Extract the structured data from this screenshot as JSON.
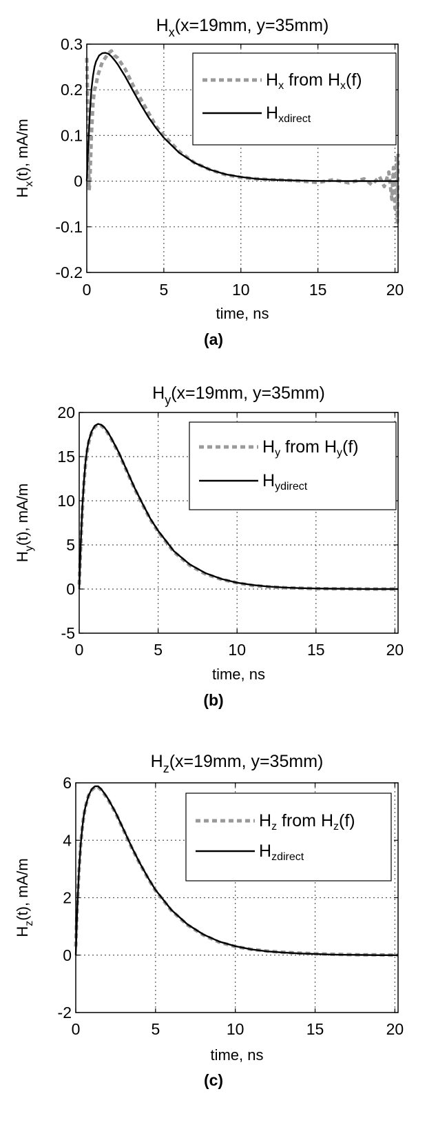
{
  "figure": {
    "subpanel_labels": [
      "(a)",
      "(b)",
      "(c)"
    ]
  },
  "chart_data": [
    {
      "type": "line",
      "panel_label": "(a)",
      "title": {
        "base": "H",
        "sub": "x",
        "rest": "(x=19mm, y=35mm)"
      },
      "xlabel": "time, ns",
      "ylabel": {
        "base": "H",
        "sub": "x",
        "rest": "(t), mA/m"
      },
      "xlim": [
        0,
        20.2
      ],
      "ylim": [
        -0.2,
        0.3
      ],
      "xticks": [
        0,
        5,
        10,
        15,
        20
      ],
      "yticks": [
        -0.2,
        -0.1,
        0,
        0.1,
        0.2,
        0.3
      ],
      "xticklabels": [
        "0",
        "5",
        "10",
        "15",
        "20"
      ],
      "yticklabels": [
        "-0.2",
        "-0.1",
        "0",
        "0.1",
        "0.2",
        "0.3"
      ],
      "grid": true,
      "legend_position": "top-right",
      "series": [
        {
          "style": "dashed",
          "color": "#9a9a9a",
          "legend": {
            "base": "H",
            "sub": "x",
            "rest": " from H",
            "sub2": "x",
            "rest2": "(f)"
          },
          "x": [
            0,
            0.05,
            0.1,
            0.15,
            0.2,
            0.3,
            0.4,
            0.5,
            0.6,
            0.7,
            0.8,
            0.9,
            1.0,
            1.2,
            1.4,
            1.6,
            1.8,
            2,
            2.5,
            3,
            3.5,
            4,
            4.5,
            5,
            6,
            7,
            8,
            9,
            10,
            11,
            12,
            13,
            14,
            15,
            16,
            17,
            18,
            18.5,
            19,
            19.3,
            19.6,
            19.8,
            19.9,
            20,
            20.1,
            20.15,
            20.2
          ],
          "y": [
            0.27,
            0.2,
            0.05,
            -0.02,
            0.0,
            0.1,
            0.17,
            0.2,
            0.21,
            0.23,
            0.24,
            0.25,
            0.26,
            0.27,
            0.28,
            0.285,
            0.275,
            0.27,
            0.245,
            0.21,
            0.18,
            0.15,
            0.12,
            0.1,
            0.065,
            0.04,
            0.025,
            0.014,
            0.008,
            0.005,
            0.003,
            0.002,
            0.0,
            -0.003,
            0.003,
            -0.004,
            0.005,
            -0.008,
            0.01,
            -0.012,
            0.02,
            -0.04,
            0.03,
            -0.06,
            0.05,
            -0.09,
            0.06
          ]
        },
        {
          "style": "solid",
          "color": "#000000",
          "legend": {
            "base": "H",
            "sub": "xdirect",
            "rest": "",
            "sub2": "",
            "rest2": ""
          },
          "x": [
            0,
            0.1,
            0.2,
            0.3,
            0.4,
            0.5,
            0.6,
            0.8,
            1.0,
            1.2,
            1.4,
            1.6,
            1.8,
            2,
            2.5,
            3,
            3.5,
            4,
            4.5,
            5,
            6,
            7,
            8,
            9,
            10,
            11,
            12,
            13,
            14,
            15,
            16,
            17,
            18,
            19,
            20,
            20.2
          ],
          "y": [
            0,
            0.08,
            0.15,
            0.2,
            0.23,
            0.25,
            0.262,
            0.275,
            0.28,
            0.281,
            0.279,
            0.273,
            0.265,
            0.256,
            0.229,
            0.198,
            0.168,
            0.14,
            0.116,
            0.095,
            0.062,
            0.04,
            0.025,
            0.015,
            0.009,
            0.005,
            0.003,
            0.002,
            0.001,
            0.0005,
            0.0003,
            0.0002,
            0.0001,
            0.0,
            0.0,
            0.0
          ]
        }
      ]
    },
    {
      "type": "line",
      "panel_label": "(b)",
      "title": {
        "base": "H",
        "sub": "y",
        "rest": "(x=19mm, y=35mm)"
      },
      "xlabel": "time, ns",
      "ylabel": {
        "base": "H",
        "sub": "y",
        "rest": "(t), mA/m"
      },
      "xlim": [
        0,
        20.2
      ],
      "ylim": [
        -5,
        20
      ],
      "xticks": [
        0,
        5,
        10,
        15,
        20
      ],
      "yticks": [
        -5,
        0,
        5,
        10,
        15,
        20
      ],
      "xticklabels": [
        "0",
        "5",
        "10",
        "15",
        "20"
      ],
      "yticklabels": [
        "-5",
        "0",
        "5",
        "10",
        "15",
        "20"
      ],
      "grid": true,
      "legend_position": "top-right",
      "series": [
        {
          "style": "dashed",
          "color": "#9a9a9a",
          "legend": {
            "base": "H",
            "sub": "y",
            "rest": " from H",
            "sub2": "y",
            "rest2": "(f)"
          },
          "x": [
            0,
            0.1,
            0.2,
            0.3,
            0.4,
            0.5,
            0.6,
            0.8,
            1.0,
            1.2,
            1.4,
            1.6,
            1.8,
            2,
            2.5,
            3,
            3.5,
            4,
            4.5,
            5,
            6,
            7,
            8,
            9,
            10,
            11,
            12,
            13,
            14,
            15,
            16,
            17,
            18,
            19,
            20,
            20.2
          ],
          "y": [
            0.5,
            5,
            9,
            12,
            14.2,
            15.6,
            16.6,
            17.8,
            18.4,
            18.6,
            18.5,
            18.2,
            17.7,
            17.1,
            15.4,
            13.4,
            11.4,
            9.6,
            7.9,
            6.5,
            4.2,
            2.7,
            1.7,
            1.1,
            0.7,
            0.4,
            0.25,
            0.15,
            0.1,
            0.05,
            0.03,
            0.02,
            0.01,
            0.0,
            0.0,
            0.0
          ]
        },
        {
          "style": "solid",
          "color": "#000000",
          "legend": {
            "base": "H",
            "sub": "ydirect",
            "rest": "",
            "sub2": "",
            "rest2": ""
          },
          "x": [
            0,
            0.1,
            0.2,
            0.3,
            0.4,
            0.5,
            0.6,
            0.8,
            1.0,
            1.2,
            1.4,
            1.6,
            1.8,
            2,
            2.5,
            3,
            3.5,
            4,
            4.5,
            5,
            6,
            7,
            8,
            9,
            10,
            11,
            12,
            13,
            14,
            15,
            16,
            17,
            18,
            19,
            20,
            20.2
          ],
          "y": [
            0,
            5.2,
            9.3,
            12.2,
            14.4,
            15.8,
            16.8,
            17.9,
            18.5,
            18.7,
            18.6,
            18.3,
            17.8,
            17.2,
            15.5,
            13.5,
            11.5,
            9.7,
            8.0,
            6.6,
            4.3,
            2.8,
            1.8,
            1.15,
            0.72,
            0.45,
            0.28,
            0.17,
            0.1,
            0.06,
            0.04,
            0.02,
            0.01,
            0.0,
            0.0,
            0.0
          ]
        }
      ]
    },
    {
      "type": "line",
      "panel_label": "(c)",
      "title": {
        "base": "H",
        "sub": "z",
        "rest": "(x=19mm, y=35mm)"
      },
      "xlabel": "time, ns",
      "ylabel": {
        "base": "H",
        "sub": "z",
        "rest": "(t), mA/m"
      },
      "xlim": [
        0,
        20.2
      ],
      "ylim": [
        -2,
        6
      ],
      "xticks": [
        0,
        5,
        10,
        15,
        20
      ],
      "yticks": [
        -2,
        0,
        2,
        4,
        6
      ],
      "xticklabels": [
        "0",
        "5",
        "10",
        "15",
        "20"
      ],
      "yticklabels": [
        "-2",
        "0",
        "2",
        "4",
        "6"
      ],
      "grid": true,
      "legend_position": "top-right",
      "series": [
        {
          "style": "dashed",
          "color": "#9a9a9a",
          "legend": {
            "base": "H",
            "sub": "z",
            "rest": " from H",
            "sub2": "z",
            "rest2": "(f)"
          },
          "x": [
            0,
            0.1,
            0.2,
            0.3,
            0.4,
            0.5,
            0.6,
            0.8,
            1.0,
            1.2,
            1.4,
            1.6,
            1.8,
            2,
            2.5,
            3,
            3.5,
            4,
            4.5,
            5,
            6,
            7,
            8,
            9,
            10,
            11,
            12,
            13,
            14,
            15,
            16,
            17,
            18,
            19,
            20,
            20.2
          ],
          "y": [
            0.3,
            1.8,
            2.9,
            3.8,
            4.4,
            4.85,
            5.15,
            5.55,
            5.75,
            5.85,
            5.85,
            5.75,
            5.6,
            5.45,
            4.95,
            4.35,
            3.75,
            3.2,
            2.7,
            2.25,
            1.55,
            1.05,
            0.7,
            0.45,
            0.3,
            0.2,
            0.14,
            0.1,
            0.07,
            0.05,
            0.03,
            0.02,
            0.01,
            0.01,
            0.0,
            0.0
          ]
        },
        {
          "style": "solid",
          "color": "#000000",
          "legend": {
            "base": "H",
            "sub": "zdirect",
            "rest": "",
            "sub2": "",
            "rest2": ""
          },
          "x": [
            0,
            0.1,
            0.2,
            0.3,
            0.4,
            0.5,
            0.6,
            0.8,
            1.0,
            1.2,
            1.4,
            1.6,
            1.8,
            2,
            2.5,
            3,
            3.5,
            4,
            4.5,
            5,
            6,
            7,
            8,
            9,
            10,
            11,
            12,
            13,
            14,
            15,
            16,
            17,
            18,
            19,
            20,
            20.2
          ],
          "y": [
            0,
            1.7,
            2.9,
            3.8,
            4.4,
            4.85,
            5.15,
            5.55,
            5.78,
            5.88,
            5.88,
            5.78,
            5.63,
            5.47,
            4.97,
            4.37,
            3.77,
            3.22,
            2.72,
            2.27,
            1.57,
            1.07,
            0.72,
            0.47,
            0.31,
            0.2,
            0.13,
            0.09,
            0.06,
            0.04,
            0.02,
            0.01,
            0.005,
            0.0,
            0.0,
            0.0
          ]
        }
      ]
    }
  ]
}
